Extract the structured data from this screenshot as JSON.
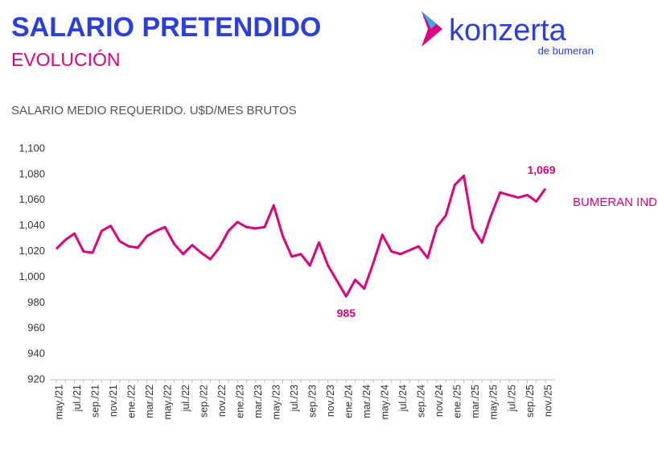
{
  "header": {
    "title": "SALARIO PRETENDIDO",
    "subtitle": "EVOLUCIÓN",
    "logo": "konzerta",
    "logo_sub": "de bumeran"
  },
  "chart_data": {
    "type": "line",
    "title": "SALARIO MEDIO REQUERIDO. U$D/MES BRUTOS",
    "categories": [
      "may./21",
      null,
      "jul./21",
      null,
      "sep./21",
      null,
      "nov./21",
      null,
      "ene./22",
      null,
      "mar./22",
      null,
      "may./22",
      null,
      "jul./22",
      null,
      "sep./22",
      null,
      "nov./22",
      null,
      "ene./23",
      null,
      "mar./23",
      null,
      "may./23",
      null,
      "jul./23",
      null,
      "sep./23",
      null,
      "nov./23",
      null,
      "ene./24",
      null,
      "mar./24",
      null,
      "may./24",
      null,
      "jul./24",
      null,
      "sep./24",
      null,
      "nov./24",
      null,
      "ene./25",
      null,
      "mar./25",
      null,
      "may./25",
      null,
      "jul./25",
      null,
      "sep./25",
      null,
      "nov./25"
    ],
    "series": [
      {
        "name": "BUMERAN INDEX",
        "color": "#e4007c",
        "values": [
          1022,
          1029,
          1034,
          1020,
          1019,
          1036,
          1040,
          1028,
          1024,
          1023,
          1032,
          1036,
          1039,
          1026,
          1018,
          1025,
          1019,
          1014,
          1023,
          1036,
          1043,
          1039,
          1038,
          1039,
          1056,
          1032,
          1016,
          1018,
          1009,
          1027,
          1009,
          997,
          985,
          998,
          991,
          1011,
          1033,
          1020,
          1018,
          1021,
          1024,
          1015,
          1039,
          1048,
          1072,
          1079,
          1038,
          1027,
          1048,
          1066,
          1064,
          1062,
          1064,
          1059,
          1069
        ],
        "value_labels": [
          null,
          null,
          null,
          null,
          null,
          null,
          null,
          null,
          null,
          null,
          null,
          null,
          null,
          null,
          null,
          null,
          null,
          null,
          null,
          null,
          null,
          null,
          null,
          null,
          null,
          null,
          null,
          null,
          null,
          null,
          null,
          null,
          "985",
          null,
          null,
          null,
          null,
          null,
          null,
          null,
          null,
          null,
          null,
          null,
          null,
          null,
          null,
          null,
          null,
          null,
          null,
          null,
          null,
          null,
          "1,069"
        ]
      }
    ],
    "ylim": [
      920,
      1100
    ],
    "yticks": [
      920,
      940,
      960,
      980,
      {
        "value": 1000,
        "label": "1,000"
      },
      {
        "value": 1020,
        "label": "1,020"
      },
      {
        "value": 1040,
        "label": "1,040"
      },
      {
        "value": 1060,
        "label": "1,060"
      },
      {
        "value": 1080,
        "label": "1,080"
      },
      {
        "value": 1100,
        "label": "1,100"
      }
    ],
    "grid": false
  }
}
